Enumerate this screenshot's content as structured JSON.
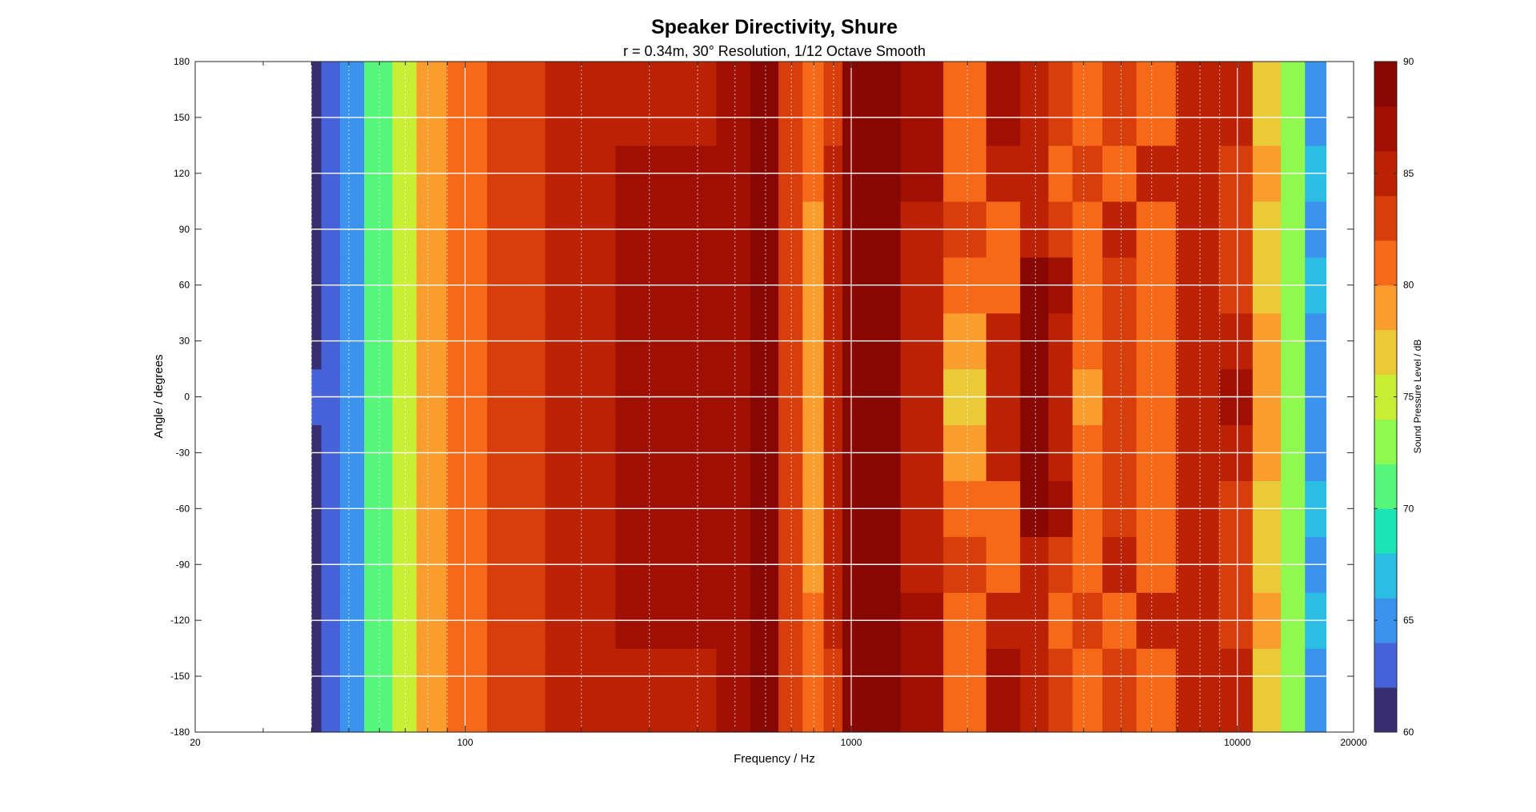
{
  "chart_data": {
    "type": "heatmap",
    "title": "Speaker Directivity, Shure",
    "subtitle": "r = 0.34m, 30° Resolution, 1/12 Octave Smooth",
    "xlabel": "Frequency / Hz",
    "ylabel": "Angle / degrees",
    "colorbar_label": "Sound Pressure Level / dB",
    "x_scale": "log",
    "xlim": [
      20,
      20000
    ],
    "ylim": [
      -180,
      180
    ],
    "clim": [
      60,
      90
    ],
    "contour_step_db": 2,
    "x_ticks": [
      20,
      100,
      1000,
      10000,
      20000
    ],
    "y_ticks": [
      180,
      150,
      120,
      90,
      60,
      30,
      0,
      -30,
      -60,
      -90,
      -120,
      -150,
      -180
    ],
    "colorbar_ticks": [
      90,
      85,
      80,
      75,
      70,
      65,
      60
    ],
    "grid": true,
    "colormap": "turbo",
    "angles_deg": [
      -180,
      -150,
      -120,
      -90,
      -60,
      -30,
      0,
      30,
      60,
      90,
      120,
      150,
      180
    ],
    "freq_hz": [
      40,
      45,
      50,
      60,
      70,
      80,
      100,
      130,
      200,
      300,
      400,
      500,
      600,
      700,
      800,
      900,
      1000,
      1200,
      1500,
      2000,
      2500,
      3000,
      3500,
      4000,
      5000,
      6000,
      8000,
      10000,
      12000,
      14000,
      16000
    ],
    "spl_db": [
      [
        60,
        62,
        65,
        70,
        74,
        78,
        81,
        83,
        85,
        85,
        85,
        87,
        88,
        82,
        80,
        83,
        88,
        89,
        86,
        81,
        86,
        85,
        82,
        80,
        83,
        81,
        85,
        84,
        77,
        72,
        65
      ],
      [
        60,
        62,
        65,
        70,
        74,
        78,
        81,
        83,
        85,
        85,
        85,
        87,
        88,
        82,
        80,
        83,
        88,
        89,
        86,
        81,
        86,
        85,
        82,
        80,
        83,
        81,
        85,
        84,
        77,
        72,
        65
      ],
      [
        61,
        62,
        65,
        70,
        74,
        78,
        81,
        83,
        85,
        86,
        86,
        87,
        88,
        82,
        80,
        84,
        89,
        89,
        86,
        81,
        84,
        85,
        80,
        83,
        81,
        85,
        84,
        83,
        78,
        73,
        66
      ],
      [
        60,
        62,
        65,
        70,
        74,
        78,
        81,
        83,
        85,
        86,
        86,
        87,
        88,
        83,
        79,
        85,
        89,
        89,
        85,
        82,
        80,
        85,
        82,
        80,
        84,
        80,
        85,
        82,
        76,
        72,
        64
      ],
      [
        61,
        62,
        65,
        70,
        74,
        78,
        81,
        83,
        85,
        86,
        86,
        87,
        88,
        82,
        78,
        85,
        89,
        89,
        84,
        80,
        81,
        88,
        86,
        80,
        83,
        81,
        84,
        82,
        77,
        73,
        66
      ],
      [
        61,
        62,
        65,
        70,
        74,
        78,
        81,
        83,
        85,
        86,
        86,
        87,
        88,
        82,
        78,
        85,
        89,
        89,
        84,
        78,
        84,
        89,
        85,
        80,
        82,
        80,
        84,
        85,
        78,
        72,
        65
      ],
      [
        62,
        62,
        65,
        70,
        74,
        78,
        81,
        83,
        85,
        86,
        86,
        87,
        88,
        82,
        78,
        85,
        89,
        89,
        84,
        77,
        85,
        89,
        85,
        79,
        82,
        80,
        84,
        86,
        79,
        72,
        65
      ],
      [
        61,
        62,
        65,
        70,
        74,
        78,
        81,
        83,
        85,
        86,
        86,
        87,
        88,
        82,
        78,
        85,
        89,
        89,
        84,
        78,
        84,
        89,
        85,
        80,
        82,
        80,
        84,
        85,
        78,
        72,
        65
      ],
      [
        61,
        62,
        65,
        70,
        74,
        78,
        81,
        83,
        85,
        86,
        86,
        87,
        88,
        82,
        78,
        85,
        89,
        89,
        84,
        80,
        81,
        88,
        86,
        80,
        83,
        81,
        84,
        82,
        77,
        73,
        66
      ],
      [
        60,
        62,
        65,
        70,
        74,
        78,
        81,
        83,
        85,
        86,
        86,
        87,
        88,
        83,
        79,
        85,
        89,
        89,
        85,
        82,
        80,
        85,
        82,
        80,
        84,
        80,
        85,
        82,
        76,
        72,
        64
      ],
      [
        61,
        62,
        65,
        70,
        74,
        78,
        81,
        83,
        85,
        86,
        86,
        87,
        88,
        82,
        80,
        84,
        89,
        89,
        86,
        81,
        84,
        85,
        80,
        83,
        81,
        85,
        84,
        83,
        78,
        73,
        66
      ],
      [
        60,
        62,
        65,
        70,
        74,
        78,
        81,
        83,
        85,
        85,
        85,
        87,
        88,
        82,
        80,
        83,
        88,
        89,
        86,
        81,
        86,
        85,
        82,
        80,
        83,
        81,
        85,
        84,
        77,
        72,
        65
      ],
      [
        60,
        62,
        65,
        70,
        74,
        78,
        81,
        83,
        85,
        85,
        85,
        87,
        88,
        82,
        80,
        83,
        88,
        89,
        86,
        81,
        86,
        85,
        82,
        80,
        83,
        81,
        85,
        84,
        77,
        72,
        65
      ]
    ]
  }
}
